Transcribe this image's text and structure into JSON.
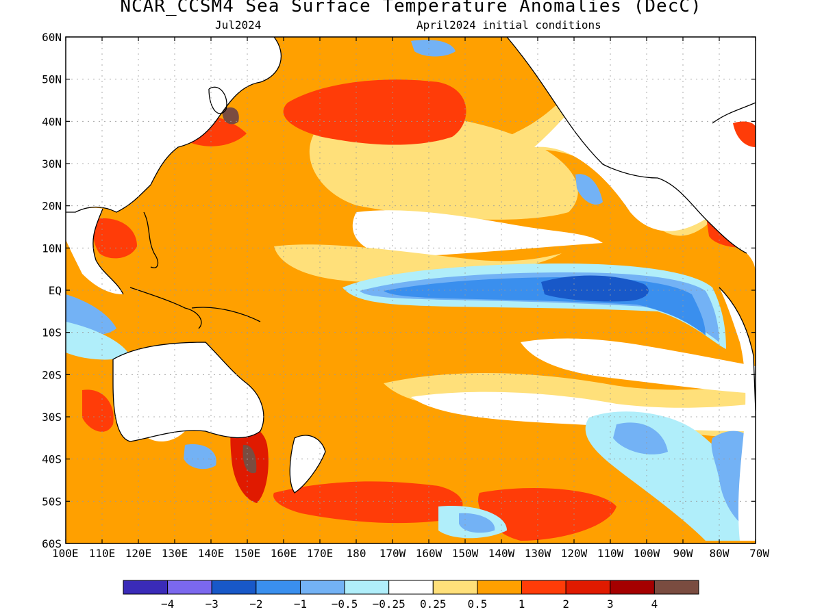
{
  "title": "NCAR_CCSM4 Sea Surface Temperature Anomalies (DecC)",
  "subtitle_left": "Jul2024",
  "subtitle_right": "April2024 initial conditions",
  "lat_labels": [
    "60N",
    "50N",
    "40N",
    "30N",
    "20N",
    "10N",
    "EQ",
    "10S",
    "20S",
    "30S",
    "40S",
    "50S",
    "60S"
  ],
  "lon_labels": [
    "100E",
    "110E",
    "120E",
    "130E",
    "140E",
    "150E",
    "160E",
    "170E",
    "180",
    "170W",
    "160W",
    "150W",
    "140W",
    "130W",
    "120W",
    "110W",
    "100W",
    "90W",
    "80W",
    "70W"
  ],
  "colorbar": {
    "colors": [
      "#3a2bb8",
      "#7b68ee",
      "#1858c8",
      "#3a8fee",
      "#73b2f5",
      "#b0eefa",
      "#ffffff",
      "#ffe07a",
      "#ffa000",
      "#ff3c08",
      "#e01a00",
      "#a50000",
      "#7a4c40"
    ],
    "labels": [
      "−4",
      "−3",
      "−2",
      "−1",
      "−0.5",
      "−0.25",
      "0.25",
      "0.5",
      "1",
      "2",
      "3",
      "4"
    ]
  },
  "anomaly_colors": {
    "lt_minus2": "#1858c8",
    "minus2_to_minus1": "#3a8fee",
    "minus1_to_minus05": "#73b2f5",
    "minus05_to_minus025": "#b0eefa",
    "plus025_to_plus05": "#ffe07a",
    "plus05_to_plus1": "#ffa000",
    "plus1_to_plus2": "#ff3c08",
    "plus2_to_plus3": "#e01a00",
    "gt_plus4": "#7a4c40",
    "land": "#ffffff"
  }
}
